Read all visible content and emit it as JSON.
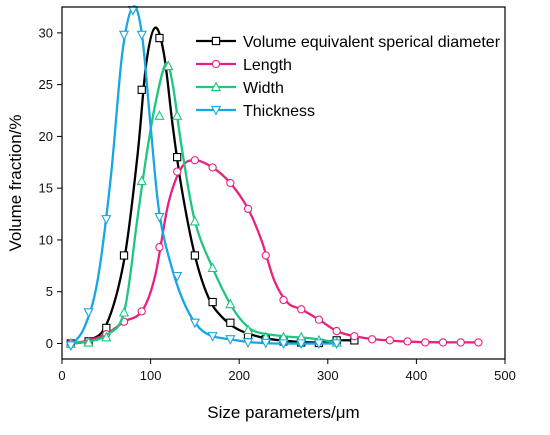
{
  "chart_data": {
    "type": "line",
    "xlabel": "Size parameters/μm",
    "ylabel": "Volume fraction/%",
    "xlim": [
      0,
      500
    ],
    "ylim": [
      -1.5,
      32.5
    ],
    "xticks": [
      0,
      100,
      200,
      300,
      400,
      500
    ],
    "yticks": [
      0,
      5,
      10,
      15,
      20,
      25,
      30
    ],
    "grid": false,
    "legend_position": "top-right",
    "series": [
      {
        "name": "Volume equivalent sperical diameter",
        "color": "#000000",
        "marker": "square",
        "points": [
          [
            10,
            0
          ],
          [
            30,
            0.2
          ],
          [
            50,
            1.5
          ],
          [
            70,
            8.5
          ],
          [
            90,
            24.5
          ],
          [
            110,
            29.5
          ],
          [
            130,
            18
          ],
          [
            150,
            8.5
          ],
          [
            170,
            4
          ],
          [
            190,
            2
          ],
          [
            210,
            0.8
          ],
          [
            230,
            0.4
          ],
          [
            250,
            0.2
          ],
          [
            270,
            0.1
          ],
          [
            290,
            0.05
          ],
          [
            310,
            0.3
          ],
          [
            330,
            0.3
          ]
        ],
        "curve": [
          [
            10,
            0
          ],
          [
            30,
            0.3
          ],
          [
            50,
            1.8
          ],
          [
            70,
            8
          ],
          [
            85,
            18
          ],
          [
            95,
            27
          ],
          [
            105,
            30.5
          ],
          [
            115,
            28
          ],
          [
            125,
            21
          ],
          [
            135,
            15
          ],
          [
            150,
            8.5
          ],
          [
            165,
            4.5
          ],
          [
            180,
            2.6
          ],
          [
            200,
            1.3
          ],
          [
            230,
            0.5
          ],
          [
            260,
            0.2
          ],
          [
            290,
            0.1
          ],
          [
            310,
            0.3
          ],
          [
            330,
            0.3
          ]
        ]
      },
      {
        "name": "Length",
        "color": "#e8227f",
        "marker": "circle",
        "points": [
          [
            10,
            0
          ],
          [
            50,
            0.9
          ],
          [
            70,
            2.1
          ],
          [
            90,
            3.1
          ],
          [
            110,
            9.3
          ],
          [
            130,
            16.6
          ],
          [
            150,
            17.7
          ],
          [
            170,
            17
          ],
          [
            190,
            15.5
          ],
          [
            210,
            13
          ],
          [
            230,
            8.5
          ],
          [
            250,
            4.2
          ],
          [
            270,
            3.3
          ],
          [
            290,
            2.3
          ],
          [
            310,
            1.2
          ],
          [
            330,
            0.7
          ],
          [
            350,
            0.4
          ],
          [
            370,
            0.3
          ],
          [
            390,
            0.2
          ],
          [
            410,
            0.1
          ],
          [
            430,
            0.1
          ],
          [
            450,
            0.1
          ],
          [
            470,
            0.1
          ]
        ],
        "curve": [
          [
            10,
            0
          ],
          [
            30,
            0.3
          ],
          [
            50,
            0.9
          ],
          [
            70,
            2.1
          ],
          [
            90,
            3.1
          ],
          [
            105,
            6.5
          ],
          [
            120,
            13.5
          ],
          [
            135,
            17
          ],
          [
            150,
            17.7
          ],
          [
            170,
            17
          ],
          [
            190,
            15.5
          ],
          [
            210,
            13
          ],
          [
            225,
            10
          ],
          [
            240,
            6
          ],
          [
            255,
            3.9
          ],
          [
            270,
            3.3
          ],
          [
            290,
            2.3
          ],
          [
            310,
            1.2
          ],
          [
            330,
            0.7
          ],
          [
            360,
            0.35
          ],
          [
            400,
            0.15
          ],
          [
            470,
            0.1
          ]
        ]
      },
      {
        "name": "Width",
        "color": "#1ec77e",
        "marker": "triangle-up",
        "points": [
          [
            10,
            0
          ],
          [
            30,
            0.1
          ],
          [
            50,
            0.6
          ],
          [
            70,
            3
          ],
          [
            90,
            15.7
          ],
          [
            110,
            22
          ],
          [
            120,
            26.8
          ],
          [
            130,
            22
          ],
          [
            150,
            11.8
          ],
          [
            170,
            7.3
          ],
          [
            190,
            3.8
          ],
          [
            210,
            1.3
          ],
          [
            230,
            0.6
          ],
          [
            250,
            0.6
          ],
          [
            270,
            0.6
          ],
          [
            290,
            0.3
          ],
          [
            310,
            0.1
          ]
        ],
        "curve": [
          [
            10,
            0
          ],
          [
            30,
            0.2
          ],
          [
            50,
            0.8
          ],
          [
            70,
            3
          ],
          [
            85,
            12
          ],
          [
            95,
            18
          ],
          [
            105,
            23
          ],
          [
            117,
            27
          ],
          [
            125,
            25
          ],
          [
            135,
            19
          ],
          [
            150,
            11.8
          ],
          [
            170,
            7.3
          ],
          [
            190,
            3.8
          ],
          [
            205,
            2
          ],
          [
            220,
            1.1
          ],
          [
            250,
            0.7
          ],
          [
            280,
            0.5
          ],
          [
            310,
            0.1
          ]
        ]
      },
      {
        "name": "Thickness",
        "color": "#19a6e4",
        "marker": "triangle-down",
        "points": [
          [
            10,
            -0.2
          ],
          [
            30,
            3
          ],
          [
            50,
            12
          ],
          [
            70,
            29.8
          ],
          [
            80,
            32.2
          ],
          [
            90,
            29.8
          ],
          [
            110,
            12.2
          ],
          [
            130,
            6.5
          ],
          [
            150,
            2
          ],
          [
            170,
            0.7
          ],
          [
            190,
            0.4
          ],
          [
            210,
            0.1
          ],
          [
            230,
            0.05
          ],
          [
            250,
            0
          ],
          [
            270,
            0
          ],
          [
            290,
            0
          ],
          [
            310,
            0
          ]
        ],
        "curve": [
          [
            10,
            -0.2
          ],
          [
            25,
            1.5
          ],
          [
            40,
            6
          ],
          [
            55,
            16
          ],
          [
            68,
            28
          ],
          [
            80,
            32.5
          ],
          [
            90,
            30
          ],
          [
            100,
            21
          ],
          [
            110,
            12.5
          ],
          [
            125,
            7
          ],
          [
            140,
            3.5
          ],
          [
            155,
            1.5
          ],
          [
            170,
            0.7
          ],
          [
            190,
            0.4
          ],
          [
            210,
            0.15
          ],
          [
            240,
            0
          ],
          [
            310,
            0
          ]
        ]
      }
    ]
  }
}
